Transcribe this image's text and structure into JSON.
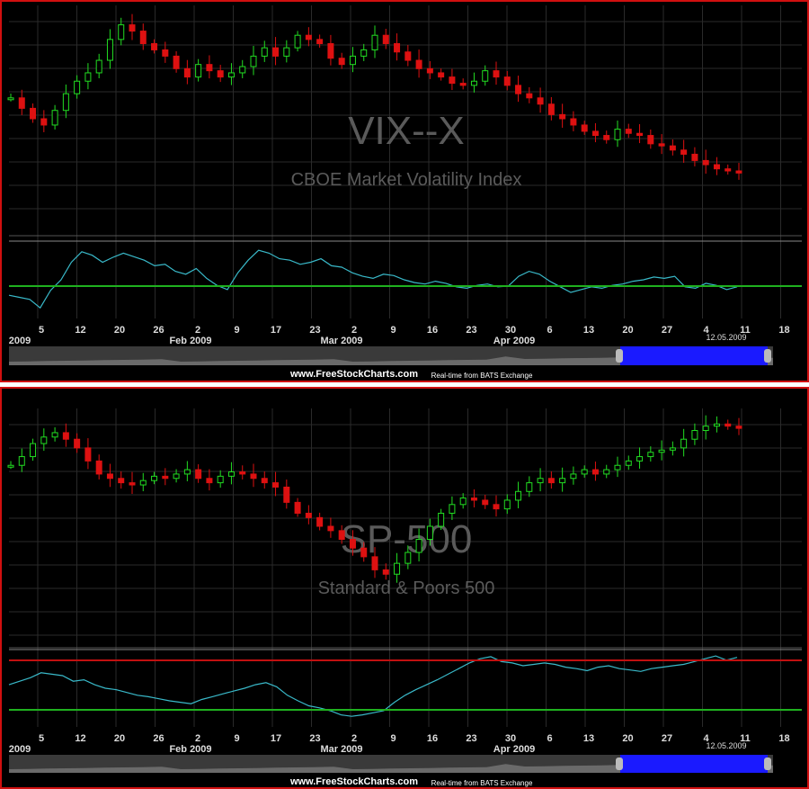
{
  "chart_data": [
    {
      "type": "candlestick",
      "symbol": "VIX--X",
      "title": "CBOE Market Volatility Index",
      "oscillator": "line",
      "x_tick_labels": [
        "5",
        "12",
        "20",
        "26",
        "2",
        "9",
        "17",
        "23",
        "2",
        "9",
        "16",
        "23",
        "30",
        "6",
        "13",
        "20",
        "27",
        "4",
        "11",
        "18"
      ],
      "month_labels": [
        "2009",
        "Feb 2009",
        "Mar 2009",
        "Apr 2009"
      ],
      "last_date_label": "12.05.2009",
      "up_color": "#22dd22",
      "down_color": "#dd1111",
      "candle_shape_series": [
        0.6,
        0.55,
        0.5,
        0.47,
        0.54,
        0.62,
        0.68,
        0.72,
        0.78,
        0.88,
        0.95,
        0.92,
        0.86,
        0.83,
        0.8,
        0.74,
        0.7,
        0.76,
        0.73,
        0.7,
        0.72,
        0.75,
        0.8,
        0.84,
        0.8,
        0.84,
        0.9,
        0.88,
        0.86,
        0.79,
        0.76,
        0.8,
        0.83,
        0.9,
        0.86,
        0.82,
        0.78,
        0.74,
        0.72,
        0.7,
        0.67,
        0.66,
        0.68,
        0.73,
        0.7,
        0.66,
        0.62,
        0.6,
        0.57,
        0.52,
        0.5,
        0.47,
        0.44,
        0.42,
        0.4,
        0.45,
        0.43,
        0.42,
        0.38,
        0.37,
        0.35,
        0.33,
        0.3,
        0.28,
        0.26,
        0.25,
        0.24
      ],
      "oscillator_shape_series": [
        0.28,
        0.25,
        0.22,
        0.1,
        0.35,
        0.5,
        0.75,
        0.9,
        0.85,
        0.75,
        0.82,
        0.88,
        0.83,
        0.78,
        0.7,
        0.72,
        0.62,
        0.58,
        0.66,
        0.52,
        0.42,
        0.36,
        0.6,
        0.78,
        0.92,
        0.88,
        0.8,
        0.78,
        0.72,
        0.75,
        0.8,
        0.7,
        0.68,
        0.6,
        0.55,
        0.52,
        0.58,
        0.56,
        0.5,
        0.46,
        0.44,
        0.48,
        0.45,
        0.4,
        0.38,
        0.42,
        0.44,
        0.4,
        0.41,
        0.55,
        0.62,
        0.58,
        0.48,
        0.4,
        0.32,
        0.36,
        0.4,
        0.38,
        0.42,
        0.44,
        0.48,
        0.5,
        0.54,
        0.52,
        0.55,
        0.4,
        0.38,
        0.45,
        0.42,
        0.36,
        0.4
      ]
    },
    {
      "type": "candlestick",
      "symbol": "SP-500",
      "title": "Standard & Poors 500",
      "oscillator": "line",
      "x_tick_labels": [
        "5",
        "12",
        "20",
        "26",
        "2",
        "9",
        "17",
        "23",
        "2",
        "9",
        "16",
        "23",
        "30",
        "6",
        "13",
        "20",
        "27",
        "4",
        "11",
        "18"
      ],
      "month_labels": [
        "2009",
        "Feb 2009",
        "Mar 2009",
        "Apr 2009"
      ],
      "last_date_label": "12.05.2009",
      "up_color": "#22dd22",
      "down_color": "#dd1111",
      "candle_shape_series": [
        0.78,
        0.82,
        0.88,
        0.91,
        0.93,
        0.9,
        0.86,
        0.8,
        0.74,
        0.72,
        0.7,
        0.69,
        0.71,
        0.73,
        0.72,
        0.74,
        0.76,
        0.72,
        0.7,
        0.73,
        0.75,
        0.74,
        0.72,
        0.7,
        0.68,
        0.61,
        0.56,
        0.54,
        0.5,
        0.48,
        0.44,
        0.4,
        0.36,
        0.3,
        0.28,
        0.33,
        0.38,
        0.44,
        0.5,
        0.56,
        0.6,
        0.63,
        0.62,
        0.6,
        0.58,
        0.62,
        0.66,
        0.7,
        0.72,
        0.7,
        0.72,
        0.74,
        0.76,
        0.74,
        0.76,
        0.78,
        0.8,
        0.82,
        0.84,
        0.85,
        0.86,
        0.9,
        0.94,
        0.96,
        0.97,
        0.96,
        0.95
      ],
      "oscillator_shape_series": [
        0.55,
        0.6,
        0.65,
        0.72,
        0.7,
        0.68,
        0.6,
        0.62,
        0.55,
        0.5,
        0.48,
        0.44,
        0.4,
        0.38,
        0.35,
        0.32,
        0.3,
        0.28,
        0.34,
        0.38,
        0.42,
        0.46,
        0.5,
        0.55,
        0.58,
        0.52,
        0.4,
        0.32,
        0.25,
        0.22,
        0.18,
        0.12,
        0.1,
        0.12,
        0.15,
        0.18,
        0.3,
        0.4,
        0.48,
        0.55,
        0.62,
        0.7,
        0.78,
        0.86,
        0.92,
        0.95,
        0.88,
        0.86,
        0.82,
        0.84,
        0.86,
        0.84,
        0.8,
        0.78,
        0.75,
        0.8,
        0.82,
        0.78,
        0.76,
        0.74,
        0.78,
        0.8,
        0.82,
        0.84,
        0.88,
        0.92,
        0.96,
        0.9,
        0.94
      ]
    }
  ],
  "footer": {
    "site": "www.FreeStockCharts.com",
    "realtime": "Real-time from BATS Exchange"
  },
  "colors": {
    "grid": "#2a2a2a",
    "oscillator": "#39b9c9",
    "green_line": "#1fb11f",
    "red_line": "#c01010",
    "navigator_select": "#1a1aff"
  }
}
